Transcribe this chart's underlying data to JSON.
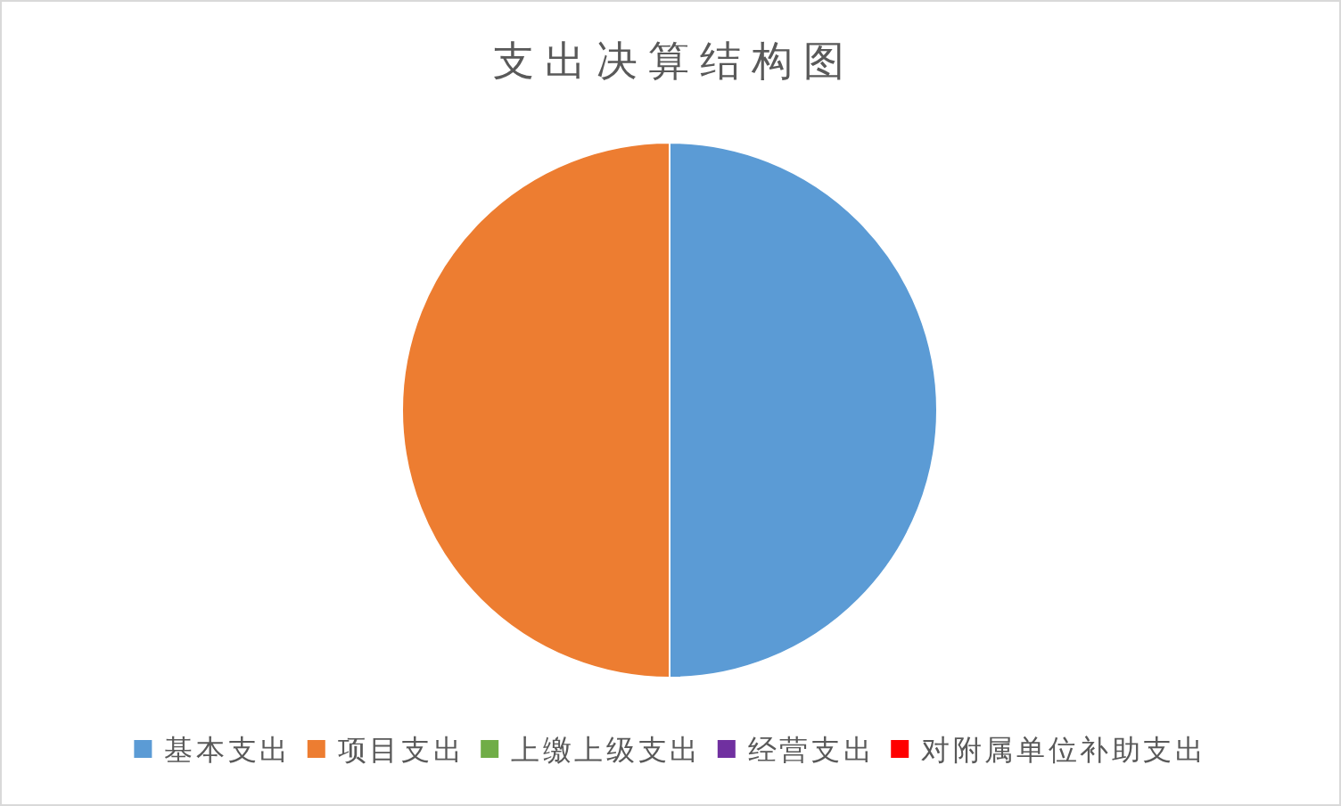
{
  "chart_data": {
    "type": "pie",
    "title": "支出决算结构图",
    "categories": [
      "基本支出",
      "项目支出",
      "上缴上级支出",
      "经营支出",
      "对附属单位补助支出"
    ],
    "values": [
      50,
      50,
      0,
      0,
      0
    ],
    "colors": [
      "#5b9bd5",
      "#ed7d31",
      "#70ad47",
      "#7030a0",
      "#ff0000"
    ],
    "legend": "bottom"
  }
}
